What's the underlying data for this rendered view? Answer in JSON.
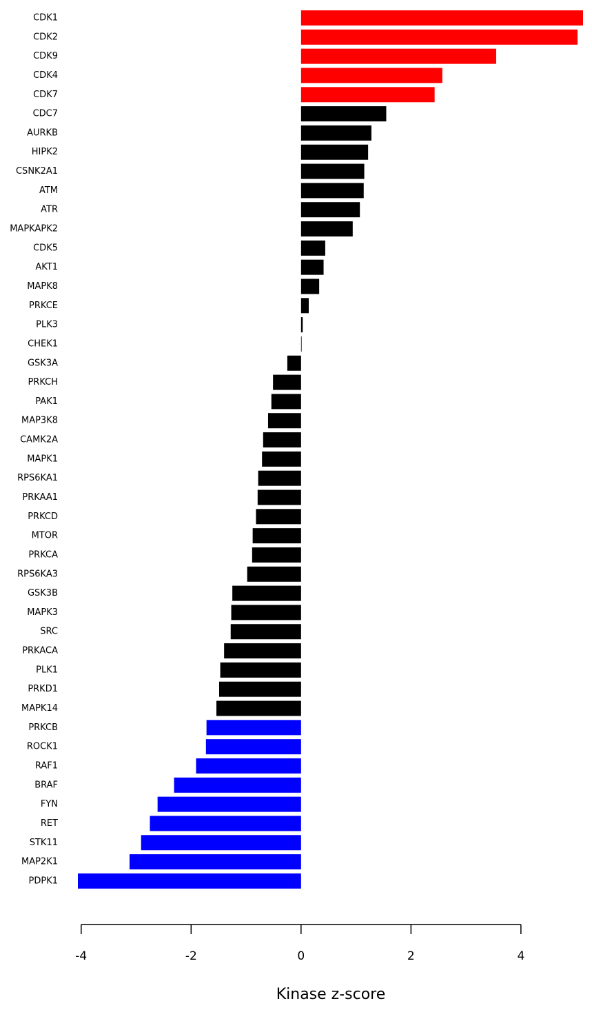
{
  "chart_data": {
    "type": "bar",
    "orientation": "horizontal",
    "x_label": "Kinase z-score",
    "categories": [
      "CDK1",
      "CDK2",
      "CDK9",
      "CDK4",
      "CDK7",
      "CDC7",
      "AURKB",
      "HIPK2",
      "CSNK2A1",
      "ATM",
      "ATR",
      "MAPKAPK2",
      "CDK5",
      "AKT1",
      "MAPK8",
      "PRKCE",
      "PLK3",
      "CHEK1",
      "GSK3A",
      "PRKCH",
      "PAK1",
      "MAP3K8",
      "CAMK2A",
      "MAPK1",
      "RPS6KA1",
      "PRKAA1",
      "PRKCD",
      "MTOR",
      "PRKCA",
      "RPS6KA3",
      "GSK3B",
      "MAPK3",
      "SRC",
      "PRKACA",
      "PLK1",
      "PRKD1",
      "MAPK14",
      "PRKCB",
      "ROCK1",
      "RAF1",
      "BRAF",
      "FYN",
      "RET",
      "STK11",
      "MAP2K1",
      "PDPK1"
    ],
    "values": [
      5.13,
      5.03,
      3.55,
      2.57,
      2.43,
      1.55,
      1.28,
      1.22,
      1.15,
      1.14,
      1.07,
      0.94,
      0.44,
      0.41,
      0.33,
      0.14,
      0.03,
      0.01,
      -0.25,
      -0.51,
      -0.54,
      -0.6,
      -0.69,
      -0.71,
      -0.78,
      -0.79,
      -0.82,
      -0.88,
      -0.89,
      -0.98,
      -1.25,
      -1.27,
      -1.28,
      -1.4,
      -1.47,
      -1.49,
      -1.54,
      -1.72,
      -1.73,
      -1.91,
      -2.31,
      -2.61,
      -2.75,
      -2.91,
      -3.12,
      -4.06
    ],
    "colors": [
      "#ff0000",
      "#ff0000",
      "#ff0000",
      "#ff0000",
      "#ff0000",
      "#000000",
      "#000000",
      "#000000",
      "#000000",
      "#000000",
      "#000000",
      "#000000",
      "#000000",
      "#000000",
      "#000000",
      "#000000",
      "#000000",
      "#000000",
      "#000000",
      "#000000",
      "#000000",
      "#000000",
      "#000000",
      "#000000",
      "#000000",
      "#000000",
      "#000000",
      "#000000",
      "#000000",
      "#000000",
      "#000000",
      "#000000",
      "#000000",
      "#000000",
      "#000000",
      "#000000",
      "#000000",
      "#0000ff",
      "#0000ff",
      "#0000ff",
      "#0000ff",
      "#0000ff",
      "#0000ff",
      "#0000ff",
      "#0000ff",
      "#0000ff"
    ],
    "xlim": [
      -4.06,
      5.13
    ],
    "xticks": [
      -4,
      -2,
      0,
      2,
      4
    ],
    "grid": false
  }
}
